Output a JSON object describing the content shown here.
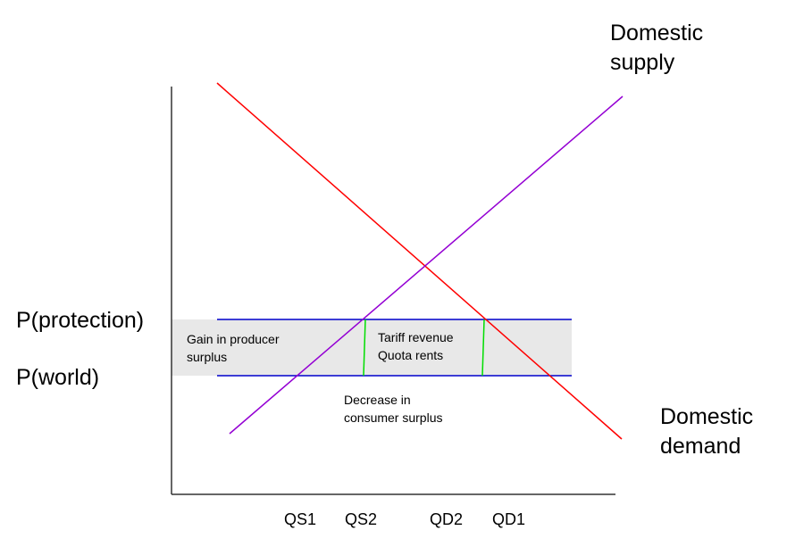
{
  "labels": {
    "domestic_supply": [
      "Domestic",
      "supply"
    ],
    "domestic_demand": [
      "Domestic",
      "demand"
    ],
    "p_protection": "P(protection)",
    "p_world": "P(world)"
  },
  "regions": {
    "producer_surplus": [
      "Gain in producer",
      "surplus"
    ],
    "tariff_revenue": [
      "Tariff revenue",
      "Quota rents"
    ],
    "consumer_surplus": [
      "Decrease in",
      "consumer surplus"
    ]
  },
  "x_ticks": [
    "QS1",
    "QS2",
    "QD2",
    "QD1"
  ],
  "colors": {
    "supply_line": "#9400d3",
    "demand_line": "#ff0000",
    "price_lines": "#0000cc",
    "quantity_markers": "#00dd00",
    "shading": "#e8e8e8",
    "axes": "#333333"
  }
}
